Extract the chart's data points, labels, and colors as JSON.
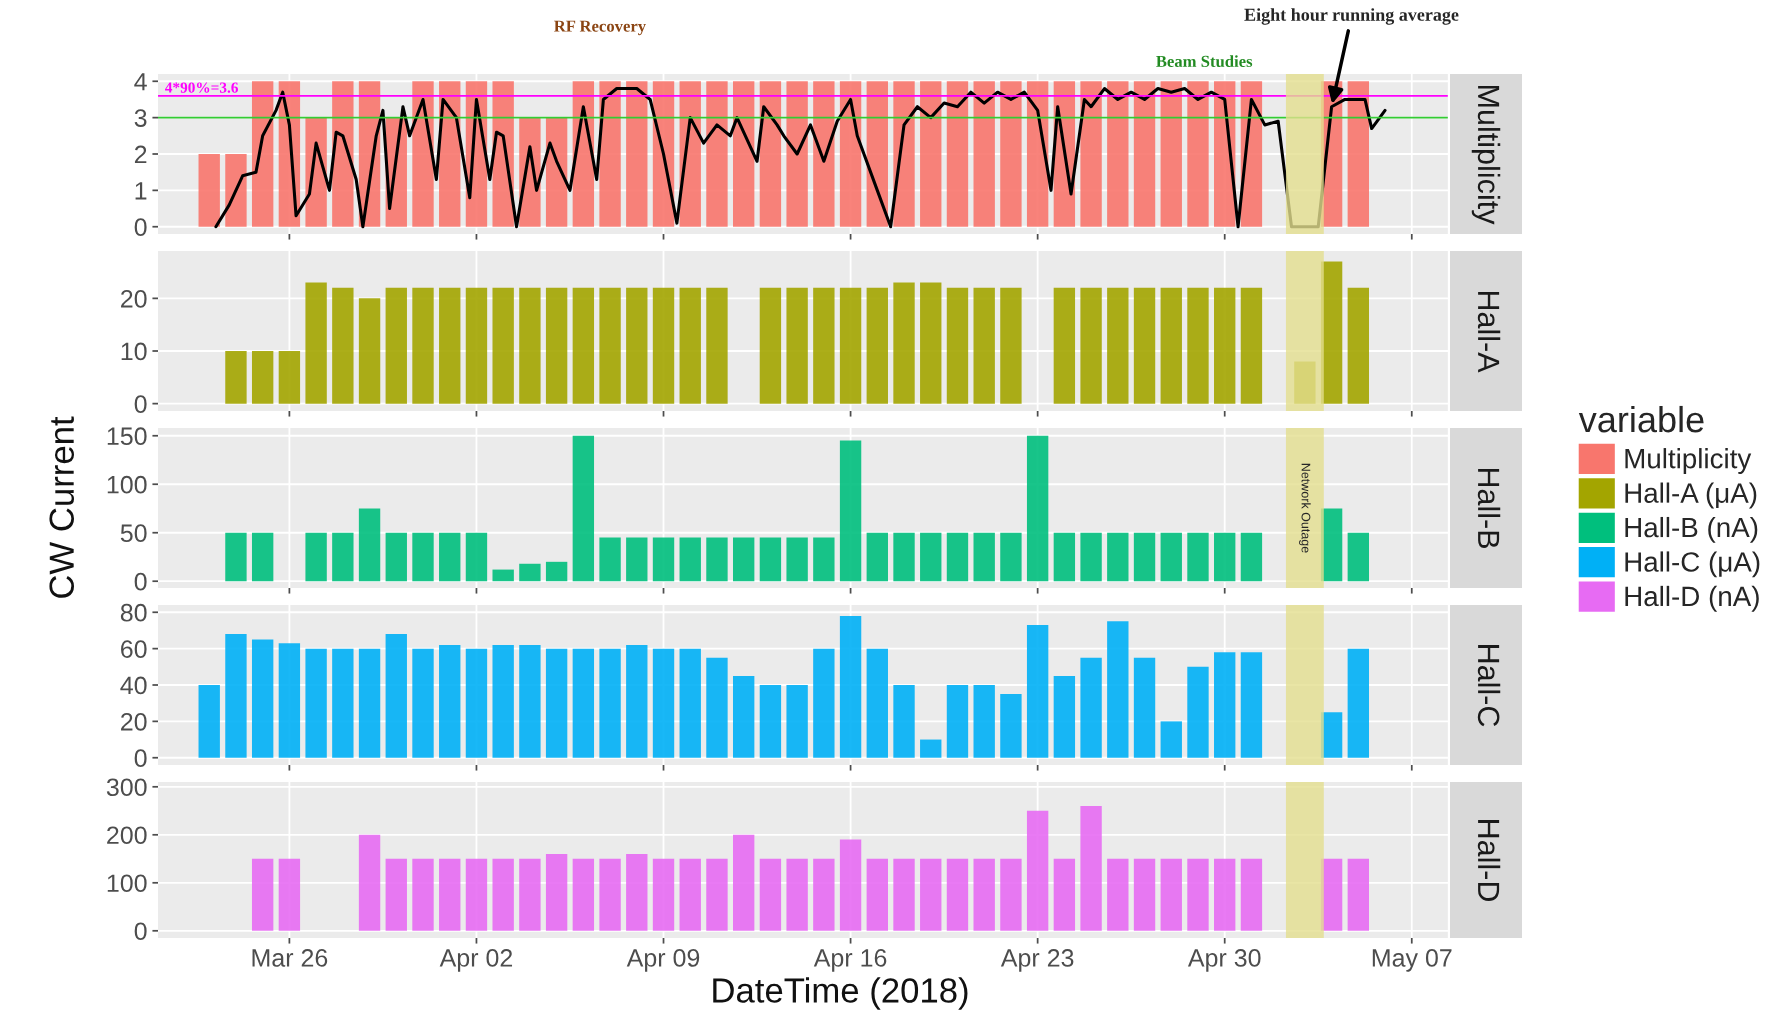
{
  "chart_data": [
    {
      "type": "bar",
      "title": "Multiplicity",
      "legend": "right",
      "legend_title": "variable",
      "grid": true,
      "tick_labels": "y",
      "x": [
        "2018-03-23",
        "2018-03-24",
        "2018-03-25",
        "2018-03-26",
        "2018-03-27",
        "2018-03-28",
        "2018-03-29",
        "2018-03-30",
        "2018-03-31",
        "2018-04-01",
        "2018-04-02",
        "2018-04-03",
        "2018-04-04",
        "2018-04-05",
        "2018-04-06",
        "2018-04-07",
        "2018-04-08",
        "2018-04-09",
        "2018-04-10",
        "2018-04-11",
        "2018-04-12",
        "2018-04-13",
        "2018-04-14",
        "2018-04-15",
        "2018-04-16",
        "2018-04-17",
        "2018-04-18",
        "2018-04-19",
        "2018-04-20",
        "2018-04-21",
        "2018-04-22",
        "2018-04-23",
        "2018-04-24",
        "2018-04-25",
        "2018-04-26",
        "2018-04-27",
        "2018-04-28",
        "2018-04-29",
        "2018-04-30",
        "2018-05-01",
        "2018-05-02",
        "2018-05-03",
        "2018-05-04",
        "2018-05-05"
      ],
      "xlim": [
        "2018-03-21T02:00",
        "2018-05-11T03:00"
      ],
      "xticks": [
        {
          "value": "2018-03-26",
          "label": null
        },
        {
          "value": "2018-04-02",
          "label": null
        },
        {
          "value": "2018-04-09",
          "label": null
        },
        {
          "value": "2018-04-16",
          "label": null
        },
        {
          "value": "2018-04-23",
          "label": null
        },
        {
          "value": "2018-04-30",
          "label": null
        },
        {
          "value": "2018-05-07",
          "label": null
        }
      ],
      "ylim": [
        -0.2,
        4.2
      ],
      "yticks": [
        0,
        1,
        2,
        3,
        4
      ],
      "series": [
        {
          "name": "Multiplicity",
          "color": "#f8766d",
          "values": [
            2,
            2,
            4,
            4,
            3,
            4,
            4,
            3,
            4,
            4,
            4,
            4,
            3,
            3,
            4,
            4,
            4,
            4,
            4,
            4,
            4,
            4,
            4,
            4,
            4,
            4,
            4,
            4,
            4,
            4,
            4,
            4,
            4,
            4,
            4,
            4,
            4,
            4,
            4,
            4,
            null,
            null,
            4,
            4
          ]
        },
        {
          "type": "line",
          "color": "#000000",
          "x": [
            "2018-03-23T06:00",
            "2018-03-23T18:00",
            "2018-03-24T06:00",
            "2018-03-24T18:00",
            "2018-03-25T00:00",
            "2018-03-25T12:00",
            "2018-03-25T18:00",
            "2018-03-26T00:00",
            "2018-03-26T06:00",
            "2018-03-26T18:00",
            "2018-03-27T00:00",
            "2018-03-27T12:00",
            "2018-03-27T18:00",
            "2018-03-28T00:00",
            "2018-03-28T12:00",
            "2018-03-28T18:00",
            "2018-03-29T06:00",
            "2018-03-29T12:00",
            "2018-03-29T18:00",
            "2018-03-30T06:00",
            "2018-03-30T12:00",
            "2018-03-31T00:00",
            "2018-03-31T12:00",
            "2018-03-31T18:00",
            "2018-04-01T06:00",
            "2018-04-01T18:00",
            "2018-04-02T00:00",
            "2018-04-02T12:00",
            "2018-04-02T18:00",
            "2018-04-03T00:00",
            "2018-04-03T12:00",
            "2018-04-04T00:00",
            "2018-04-04T06:00",
            "2018-04-04T18:00",
            "2018-04-05T00:00",
            "2018-04-05T12:00",
            "2018-04-06T00:00",
            "2018-04-06T12:00",
            "2018-04-06T18:00",
            "2018-04-07T06:00",
            "2018-04-08T00:00",
            "2018-04-08T12:00",
            "2018-04-09T00:00",
            "2018-04-09T12:00",
            "2018-04-10T00:00",
            "2018-04-10T12:00",
            "2018-04-11T00:00",
            "2018-04-11T12:00",
            "2018-04-11T18:00",
            "2018-04-12T12:00",
            "2018-04-12T18:00",
            "2018-04-13T06:00",
            "2018-04-13T12:00",
            "2018-04-14T00:00",
            "2018-04-14T12:00",
            "2018-04-15T00:00",
            "2018-04-15T12:00",
            "2018-04-16T00:00",
            "2018-04-16T06:00",
            "2018-04-17T00:00",
            "2018-04-17T12:00",
            "2018-04-18T00:00",
            "2018-04-18T12:00",
            "2018-04-19T00:00",
            "2018-04-19T12:00",
            "2018-04-20T00:00",
            "2018-04-20T12:00",
            "2018-04-21T00:00",
            "2018-04-21T12:00",
            "2018-04-22T00:00",
            "2018-04-22T12:00",
            "2018-04-23T00:00",
            "2018-04-23T12:00",
            "2018-04-23T18:00",
            "2018-04-24T06:00",
            "2018-04-24T18:00",
            "2018-04-25T00:00",
            "2018-04-25T12:00",
            "2018-04-26T00:00",
            "2018-04-26T12:00",
            "2018-04-27T00:00",
            "2018-04-27T12:00",
            "2018-04-28T00:00",
            "2018-04-28T12:00",
            "2018-04-29T00:00",
            "2018-04-29T12:00",
            "2018-04-30T00:00",
            "2018-04-30T12:00",
            "2018-05-01T00:00",
            "2018-05-01T12:00",
            "2018-05-02T00:00",
            "2018-05-02T12:00",
            "2018-05-03T12:00",
            "2018-05-04T00:00",
            "2018-05-04T12:00",
            "2018-05-05T06:00",
            "2018-05-05T12:00",
            "2018-05-06T00:00"
          ],
          "values": [
            0,
            0.6,
            1.4,
            1.5,
            2.5,
            3.2,
            3.7,
            2.8,
            0.3,
            0.9,
            2.3,
            1.0,
            2.6,
            2.5,
            1.3,
            0,
            2.5,
            3.2,
            0.5,
            3.3,
            2.5,
            3.5,
            1.3,
            3.5,
            3.0,
            0.8,
            3.5,
            1.3,
            2.6,
            2.5,
            0,
            2.2,
            1.0,
            2.3,
            1.8,
            1.0,
            3.3,
            1.3,
            3.5,
            3.8,
            3.8,
            3.5,
            2.0,
            0.1,
            3.0,
            2.3,
            2.8,
            2.5,
            3.0,
            1.8,
            3.3,
            2.8,
            2.5,
            2.0,
            2.8,
            1.8,
            2.9,
            3.5,
            2.5,
            1.0,
            0,
            2.8,
            3.3,
            3.0,
            3.4,
            3.3,
            3.7,
            3.4,
            3.7,
            3.5,
            3.7,
            3.2,
            1.0,
            3.3,
            0.9,
            3.5,
            3.3,
            3.8,
            3.5,
            3.7,
            3.5,
            3.8,
            3.7,
            3.8,
            3.5,
            3.7,
            3.5,
            0,
            3.5,
            2.8,
            2.9,
            0,
            0,
            3.3,
            3.5,
            3.5,
            2.7,
            3.2
          ]
        }
      ],
      "ref_lines": [
        {
          "axis": "y",
          "value": 3.6,
          "label": "4*90%=3.6",
          "color": "#ff00ff"
        },
        {
          "axis": "y",
          "value": 3,
          "color": "#33cc33"
        }
      ],
      "bands": [
        {
          "axis": "x",
          "from": "2018-05-02T07:00",
          "to": "2018-05-03T17:00",
          "color": "#e4df8e"
        }
      ],
      "annotations": [
        "RF Recovery",
        "Beam Studies",
        {
          "text": "Eight hour running average",
          "x": "2018-05-04T00:00",
          "y": 3.3
        }
      ]
    },
    {
      "type": "bar",
      "title": "Hall-A",
      "grid": true,
      "tick_labels": "y",
      "x": [
        "2018-03-24",
        "2018-03-25",
        "2018-03-26",
        "2018-03-27",
        "2018-03-28",
        "2018-03-29",
        "2018-03-30",
        "2018-03-31",
        "2018-04-01",
        "2018-04-02",
        "2018-04-03",
        "2018-04-04",
        "2018-04-05",
        "2018-04-06",
        "2018-04-07",
        "2018-04-08",
        "2018-04-09",
        "2018-04-10",
        "2018-04-11",
        "2018-04-12",
        "2018-04-13",
        "2018-04-14",
        "2018-04-15",
        "2018-04-16",
        "2018-04-17",
        "2018-04-18",
        "2018-04-19",
        "2018-04-20",
        "2018-04-21",
        "2018-04-22",
        "2018-04-23",
        "2018-04-24",
        "2018-04-25",
        "2018-04-26",
        "2018-04-27",
        "2018-04-28",
        "2018-04-29",
        "2018-04-30",
        "2018-05-01",
        "2018-05-02",
        "2018-05-03",
        "2018-05-04",
        "2018-05-05"
      ],
      "xlim": [
        "2018-03-21T02:00",
        "2018-05-11T03:00"
      ],
      "xticks": [
        {
          "value": "2018-03-26",
          "label": null
        },
        {
          "value": "2018-04-02",
          "label": null
        },
        {
          "value": "2018-04-09",
          "label": null
        },
        {
          "value": "2018-04-16",
          "label": null
        },
        {
          "value": "2018-04-23",
          "label": null
        },
        {
          "value": "2018-04-30",
          "label": null
        },
        {
          "value": "2018-05-07",
          "label": null
        }
      ],
      "ylim": [
        -1.4,
        29
      ],
      "yticks": [
        0,
        10,
        20
      ],
      "series": [
        {
          "name": "Hall-A (μA)",
          "color": "#a3a500",
          "values": [
            10,
            10,
            10,
            23,
            22,
            20,
            22,
            22,
            22,
            22,
            22,
            22,
            22,
            22,
            22,
            22,
            22,
            22,
            22,
            null,
            22,
            22,
            22,
            22,
            22,
            23,
            23,
            22,
            22,
            22,
            null,
            22,
            22,
            22,
            22,
            22,
            22,
            22,
            22,
            null,
            8,
            27,
            22
          ]
        }
      ],
      "bands": [
        {
          "axis": "x",
          "from": "2018-05-02T07:00",
          "to": "2018-05-03T17:00",
          "color": "#e4df8e"
        }
      ]
    },
    {
      "type": "bar",
      "title": "Hall-B",
      "grid": true,
      "tick_labels": "y",
      "ylabel": "CW Current",
      "x": [
        "2018-03-24",
        "2018-03-25",
        "2018-03-26",
        "2018-03-27",
        "2018-03-28",
        "2018-03-29",
        "2018-03-30",
        "2018-03-31",
        "2018-04-01",
        "2018-04-02",
        "2018-04-03",
        "2018-04-04",
        "2018-04-05",
        "2018-04-06",
        "2018-04-07",
        "2018-04-08",
        "2018-04-09",
        "2018-04-10",
        "2018-04-11",
        "2018-04-12",
        "2018-04-13",
        "2018-04-14",
        "2018-04-15",
        "2018-04-16",
        "2018-04-17",
        "2018-04-18",
        "2018-04-19",
        "2018-04-20",
        "2018-04-21",
        "2018-04-22",
        "2018-04-23",
        "2018-04-24",
        "2018-04-25",
        "2018-04-26",
        "2018-04-27",
        "2018-04-28",
        "2018-04-29",
        "2018-04-30",
        "2018-05-01",
        "2018-05-02",
        "2018-05-03",
        "2018-05-04",
        "2018-05-05"
      ],
      "xlim": [
        "2018-03-21T02:00",
        "2018-05-11T03:00"
      ],
      "xticks": [
        {
          "value": "2018-03-26",
          "label": null
        },
        {
          "value": "2018-04-02",
          "label": null
        },
        {
          "value": "2018-04-09",
          "label": null
        },
        {
          "value": "2018-04-16",
          "label": null
        },
        {
          "value": "2018-04-23",
          "label": null
        },
        {
          "value": "2018-04-30",
          "label": null
        },
        {
          "value": "2018-05-07",
          "label": null
        }
      ],
      "ylim": [
        -7,
        158
      ],
      "yticks": [
        0,
        50,
        100,
        150
      ],
      "series": [
        {
          "name": "Hall-B (nA)",
          "color": "#00bf7d",
          "values": [
            50,
            50,
            null,
            50,
            50,
            75,
            50,
            50,
            50,
            50,
            12,
            18,
            20,
            150,
            45,
            45,
            45,
            45,
            45,
            45,
            45,
            45,
            45,
            145,
            50,
            50,
            50,
            50,
            50,
            50,
            150,
            50,
            50,
            50,
            50,
            50,
            50,
            50,
            50,
            null,
            null,
            75,
            50
          ]
        }
      ],
      "bands": [
        {
          "axis": "x",
          "from": "2018-05-02T07:00",
          "to": "2018-05-03T17:00",
          "label": "Network Outage",
          "color": "#e4df8e"
        }
      ]
    },
    {
      "type": "bar",
      "title": "Hall-C",
      "grid": true,
      "tick_labels": "y",
      "x": [
        "2018-03-23",
        "2018-03-24",
        "2018-03-25",
        "2018-03-26",
        "2018-03-27",
        "2018-03-28",
        "2018-03-29",
        "2018-03-30",
        "2018-03-31",
        "2018-04-01",
        "2018-04-02",
        "2018-04-03",
        "2018-04-04",
        "2018-04-05",
        "2018-04-06",
        "2018-04-07",
        "2018-04-08",
        "2018-04-09",
        "2018-04-10",
        "2018-04-11",
        "2018-04-12",
        "2018-04-13",
        "2018-04-14",
        "2018-04-15",
        "2018-04-16",
        "2018-04-17",
        "2018-04-18",
        "2018-04-19",
        "2018-04-20",
        "2018-04-21",
        "2018-04-22",
        "2018-04-23",
        "2018-04-24",
        "2018-04-25",
        "2018-04-26",
        "2018-04-27",
        "2018-04-28",
        "2018-04-29",
        "2018-04-30",
        "2018-05-01",
        "2018-05-02",
        "2018-05-03",
        "2018-05-04",
        "2018-05-05"
      ],
      "xlim": [
        "2018-03-21T02:00",
        "2018-05-11T03:00"
      ],
      "xticks": [
        {
          "value": "2018-03-26",
          "label": null
        },
        {
          "value": "2018-04-02",
          "label": null
        },
        {
          "value": "2018-04-09",
          "label": null
        },
        {
          "value": "2018-04-16",
          "label": null
        },
        {
          "value": "2018-04-23",
          "label": null
        },
        {
          "value": "2018-04-30",
          "label": null
        },
        {
          "value": "2018-05-07",
          "label": null
        }
      ],
      "ylim": [
        -4,
        84
      ],
      "yticks": [
        0,
        20,
        40,
        60,
        80
      ],
      "series": [
        {
          "name": "Hall-C (μA)",
          "color": "#00b0f6",
          "values": [
            40,
            68,
            65,
            63,
            60,
            60,
            60,
            68,
            60,
            62,
            60,
            62,
            62,
            60,
            60,
            60,
            62,
            60,
            60,
            55,
            45,
            40,
            40,
            60,
            78,
            60,
            40,
            10,
            40,
            40,
            35,
            73,
            45,
            55,
            75,
            55,
            20,
            50,
            58,
            58,
            null,
            null,
            25,
            60
          ]
        }
      ],
      "bands": [
        {
          "axis": "x",
          "from": "2018-05-02T07:00",
          "to": "2018-05-03T17:00",
          "color": "#e4df8e"
        }
      ]
    },
    {
      "type": "bar",
      "title": "Hall-D",
      "grid": true,
      "xlabel": "DateTime (2018)",
      "x": [
        "2018-03-25",
        "2018-03-26",
        "2018-03-27",
        "2018-03-28",
        "2018-03-29",
        "2018-03-30",
        "2018-03-31",
        "2018-04-01",
        "2018-04-02",
        "2018-04-03",
        "2018-04-04",
        "2018-04-05",
        "2018-04-06",
        "2018-04-07",
        "2018-04-08",
        "2018-04-09",
        "2018-04-10",
        "2018-04-11",
        "2018-04-12",
        "2018-04-13",
        "2018-04-14",
        "2018-04-15",
        "2018-04-16",
        "2018-04-17",
        "2018-04-18",
        "2018-04-19",
        "2018-04-20",
        "2018-04-21",
        "2018-04-22",
        "2018-04-23",
        "2018-04-24",
        "2018-04-25",
        "2018-04-26",
        "2018-04-27",
        "2018-04-28",
        "2018-04-29",
        "2018-04-30",
        "2018-05-01",
        "2018-05-02",
        "2018-05-03",
        "2018-05-04",
        "2018-05-05"
      ],
      "xlim": [
        "2018-03-21T02:00",
        "2018-05-11T03:00"
      ],
      "xticks": [
        {
          "value": "2018-03-26",
          "label": "Mar 26"
        },
        {
          "value": "2018-04-02",
          "label": "Apr 02"
        },
        {
          "value": "2018-04-09",
          "label": "Apr 09"
        },
        {
          "value": "2018-04-16",
          "label": "Apr 16"
        },
        {
          "value": "2018-04-23",
          "label": "Apr 23"
        },
        {
          "value": "2018-04-30",
          "label": "Apr 30"
        },
        {
          "value": "2018-05-07",
          "label": "May 07"
        }
      ],
      "ylim": [
        -15,
        310
      ],
      "yticks": [
        0,
        100,
        200,
        300
      ],
      "series": [
        {
          "name": "Hall-D (nA)",
          "color": "#e76bf3",
          "values": [
            150,
            150,
            null,
            null,
            200,
            150,
            150,
            150,
            150,
            150,
            150,
            160,
            150,
            150,
            160,
            150,
            150,
            150,
            200,
            150,
            150,
            150,
            190,
            150,
            150,
            150,
            150,
            150,
            150,
            250,
            150,
            260,
            150,
            150,
            150,
            150,
            150,
            150,
            null,
            null,
            150,
            150
          ]
        }
      ],
      "bands": [
        {
          "axis": "x",
          "from": "2018-05-02T07:00",
          "to": "2018-05-03T17:00",
          "color": "#e4df8e"
        }
      ]
    }
  ]
}
